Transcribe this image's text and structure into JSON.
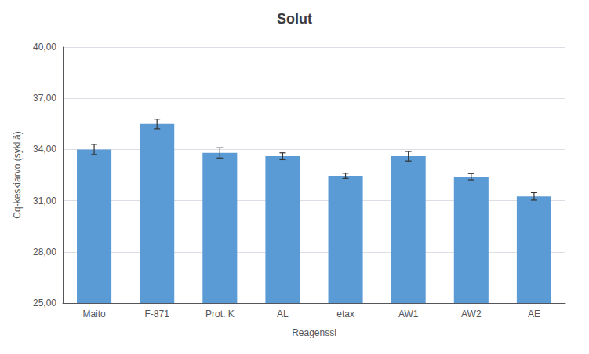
{
  "chart_data": {
    "type": "bar",
    "title": "Solut",
    "xlabel": "Reagenssi",
    "ylabel": "Cq-keskiarvo (sykliä)",
    "categories": [
      "Maito",
      "F-871",
      "Prot. K",
      "AL",
      "etax",
      "AW1",
      "AW2",
      "AE"
    ],
    "values": [
      34.0,
      35.5,
      33.8,
      33.6,
      32.45,
      33.6,
      32.4,
      31.25
    ],
    "errors": [
      0.3,
      0.28,
      0.3,
      0.2,
      0.15,
      0.28,
      0.18,
      0.22
    ],
    "color": "#5B9BD5",
    "ylim": [
      25.0,
      40.0
    ],
    "yticks": [
      {
        "value": 25.0,
        "label": "25,00"
      },
      {
        "value": 28.0,
        "label": "28,00"
      },
      {
        "value": 31.0,
        "label": "31,00"
      },
      {
        "value": 34.0,
        "label": "34,00"
      },
      {
        "value": 37.0,
        "label": "37,00"
      },
      {
        "value": 40.0,
        "label": "40,00"
      }
    ],
    "grid": true
  }
}
